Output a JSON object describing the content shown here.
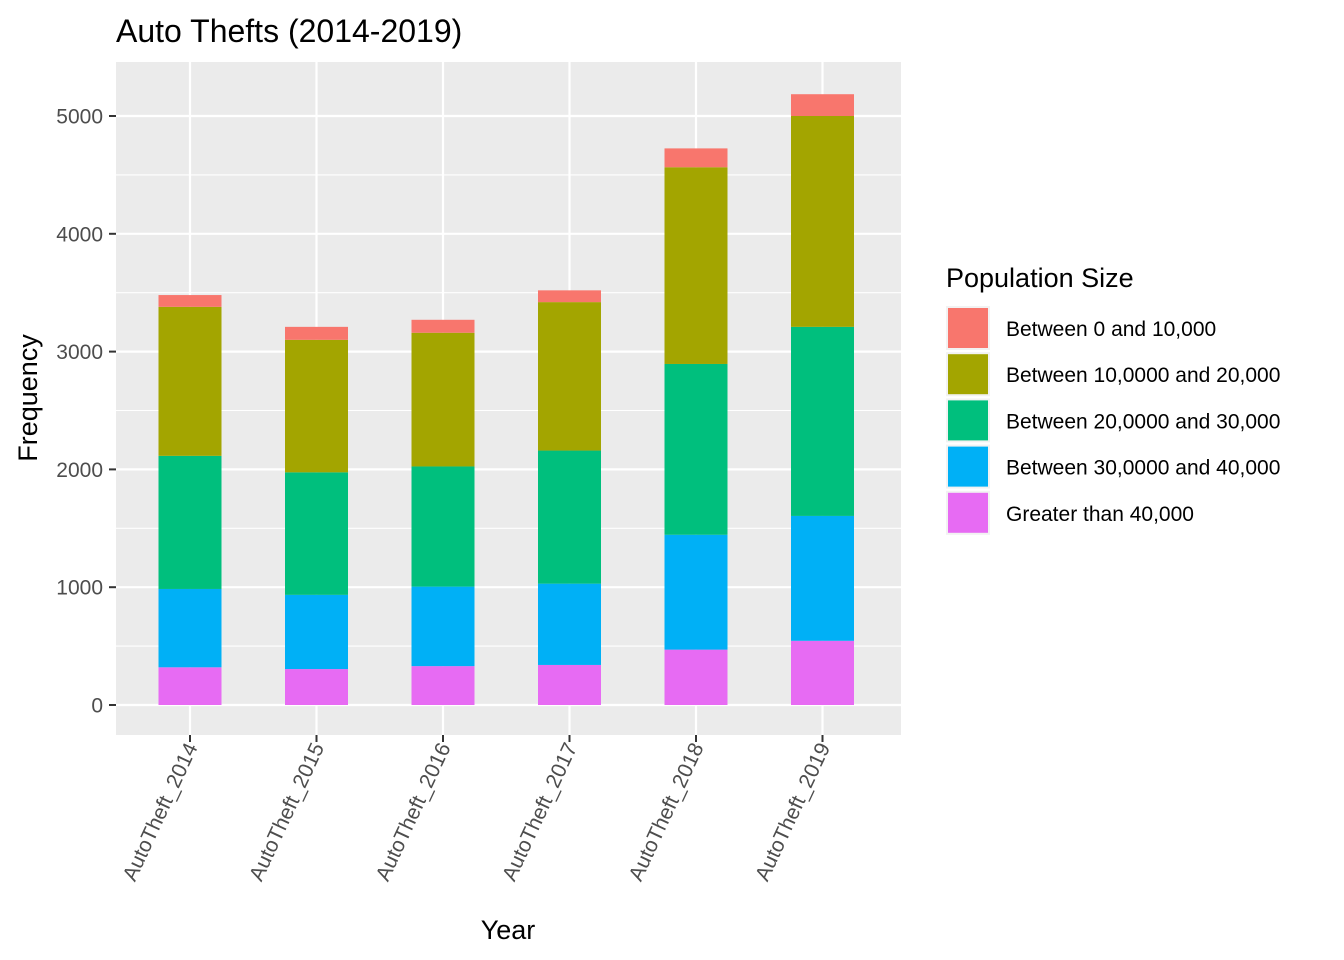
{
  "chart_data": {
    "type": "bar",
    "stacked": true,
    "title": "Auto Thefts (2014-2019)",
    "xlabel": "Year",
    "ylabel": "Frequency",
    "ylim": [
      0,
      5500
    ],
    "yticks": [
      0,
      1000,
      2000,
      3000,
      4000,
      5000
    ],
    "ytick_labels": [
      "0",
      "1000",
      "2000",
      "3000",
      "4000",
      "5000"
    ],
    "grid": true,
    "legend_title": "Population Size",
    "legend_position": "right",
    "categories": [
      "AutoTheft_2014",
      "AutoTheft_2015",
      "AutoTheft_2016",
      "AutoTheft_2017",
      "AutoTheft_2018",
      "AutoTheft_2019"
    ],
    "series": [
      {
        "name": "Greater than 40,000",
        "color": "#E76BF3",
        "values": [
          320,
          305,
          330,
          340,
          470,
          545
        ]
      },
      {
        "name": "Between 30,0000 and 40,000",
        "color": "#00B0F6",
        "values": [
          665,
          630,
          675,
          690,
          975,
          1060
        ]
      },
      {
        "name": "Between 20,0000 and 30,000",
        "color": "#00BF7D",
        "values": [
          1130,
          1040,
          1020,
          1130,
          1450,
          1605
        ]
      },
      {
        "name": "Between 10,0000 and 20,000",
        "color": "#A3A500",
        "values": [
          1265,
          1125,
          1135,
          1260,
          1670,
          1790
        ]
      },
      {
        "name": "Between 0 and 10,000",
        "color": "#F8766D",
        "values": [
          100,
          110,
          110,
          100,
          160,
          185
        ]
      }
    ]
  }
}
